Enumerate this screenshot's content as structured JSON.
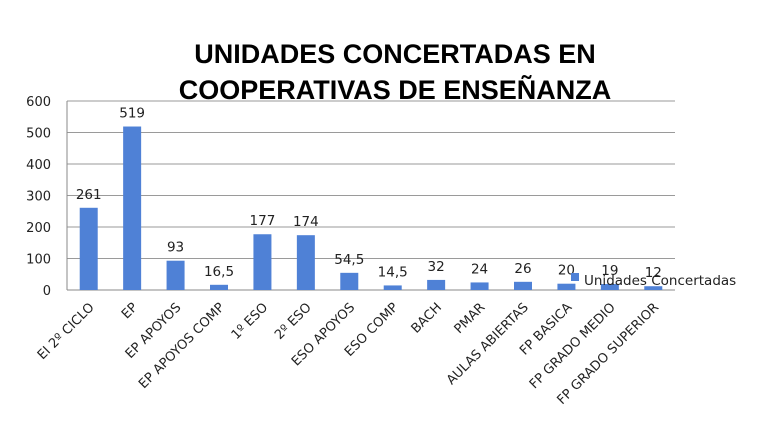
{
  "chart_data": {
    "type": "bar",
    "title_line1": "UNIDADES CONCERTADAS EN",
    "title_line2": "COOPERATIVAS DE ENSEÑANZA",
    "categories": [
      "EI 2º CICLO",
      "EP",
      "EP APOYOS",
      "EP APOYOS COMP",
      "1º ESO",
      "2º ESO",
      "ESO APOYOS",
      "ESO COMP",
      "BACH",
      "PMAR",
      "AULAS ABIERTAS",
      "FP BASICA",
      "FP GRADO MEDIO",
      "FP GRADO SUPERIOR"
    ],
    "series": [
      {
        "name": "Unidades Concertadas",
        "values": [
          261,
          519,
          93,
          16.5,
          177,
          174,
          54.5,
          14.5,
          32,
          24,
          26,
          20,
          19,
          12
        ],
        "labels": [
          "261",
          "519",
          "93",
          "16,5",
          "177",
          "174",
          "54,5",
          "14,5",
          "32",
          "24",
          "26",
          "20",
          "19",
          "12"
        ]
      }
    ],
    "ylim": [
      0,
      600
    ],
    "yticks": [
      "0",
      "100",
      "200",
      "300",
      "400",
      "500",
      "600"
    ],
    "grid": true,
    "legend_position": "right",
    "bar_color": "#4f81d6"
  }
}
